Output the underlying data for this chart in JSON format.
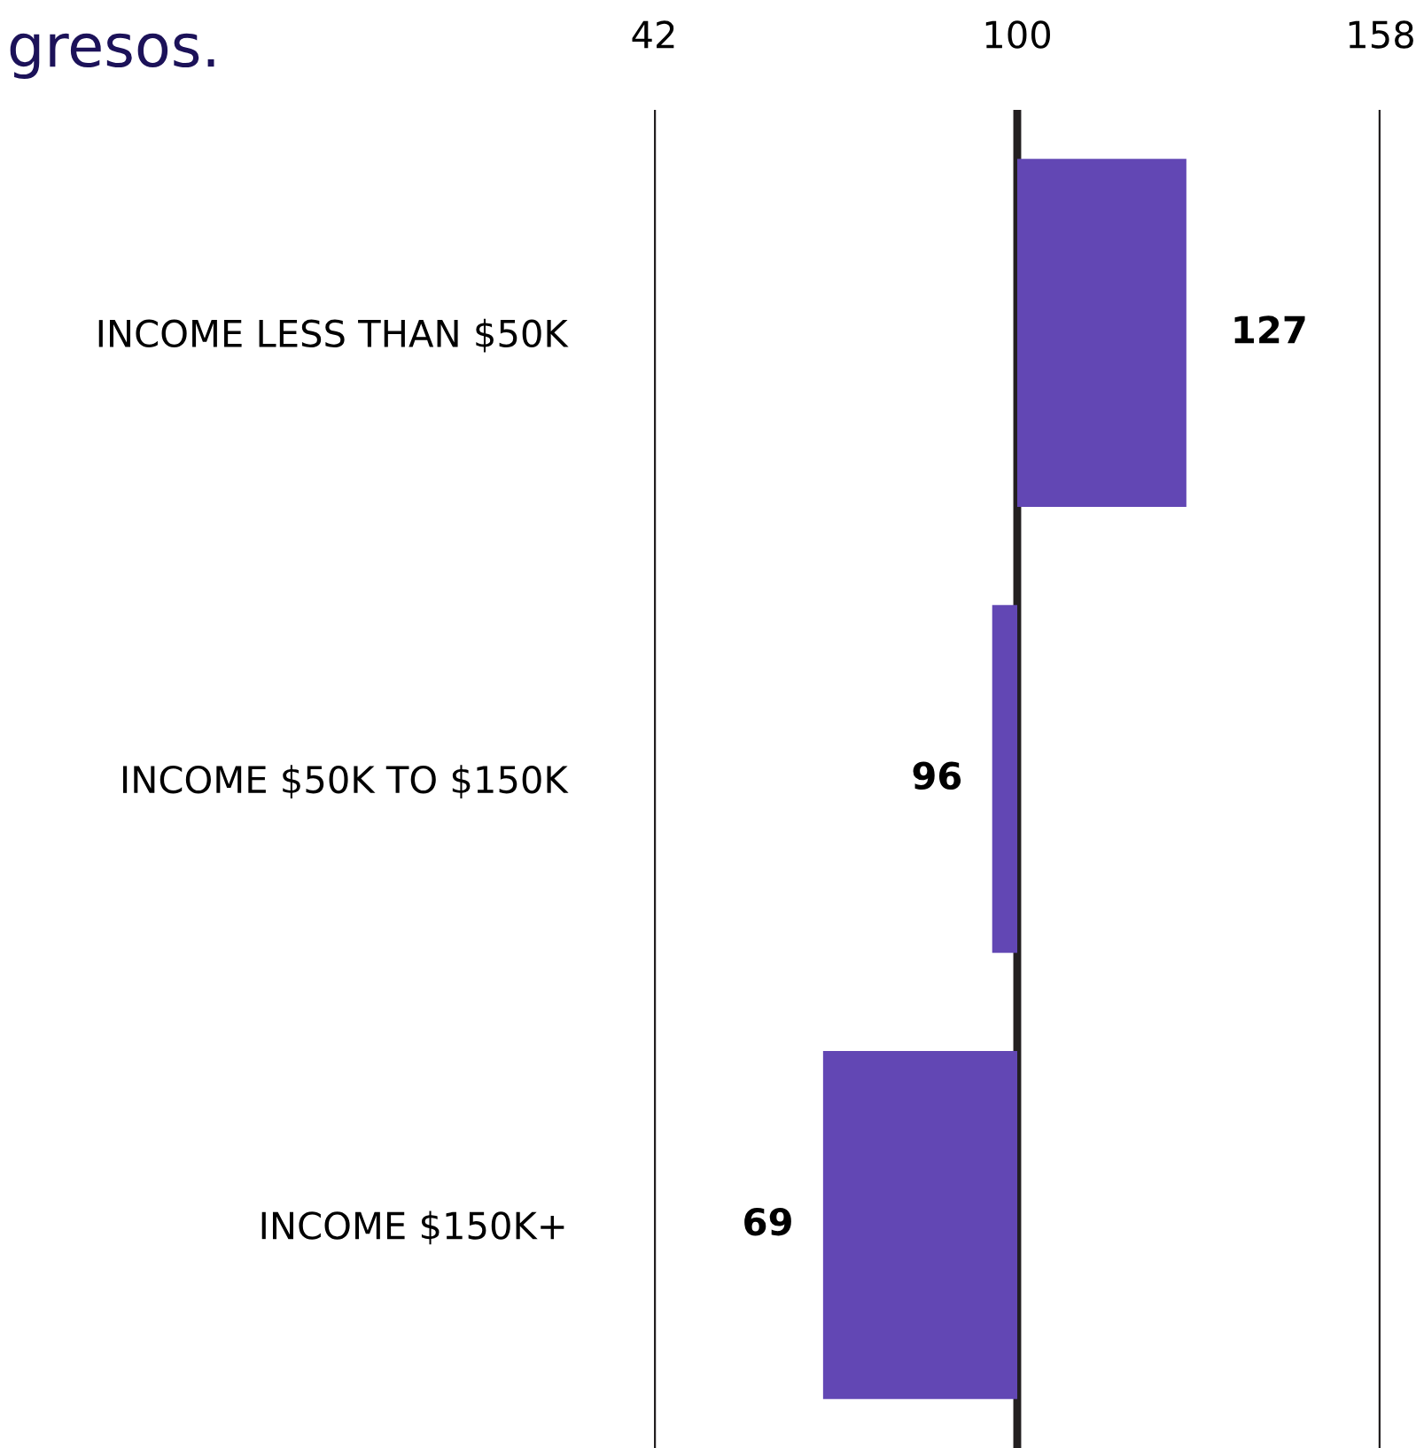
{
  "chart_data": {
    "type": "bar",
    "orientation": "horizontal",
    "title": "gresos.",
    "categories": [
      "INCOME LESS THAN $50K",
      "INCOME $50K TO $150K",
      "INCOME $150K+"
    ],
    "base": [
      100,
      100,
      100
    ],
    "values": [
      27,
      -4,
      -31
    ],
    "value_labels": [
      "127",
      "96",
      "69"
    ],
    "color": "#6247b4",
    "xlim": [
      42,
      158
    ],
    "xticks": [
      42,
      100,
      158
    ],
    "grid": "x"
  }
}
